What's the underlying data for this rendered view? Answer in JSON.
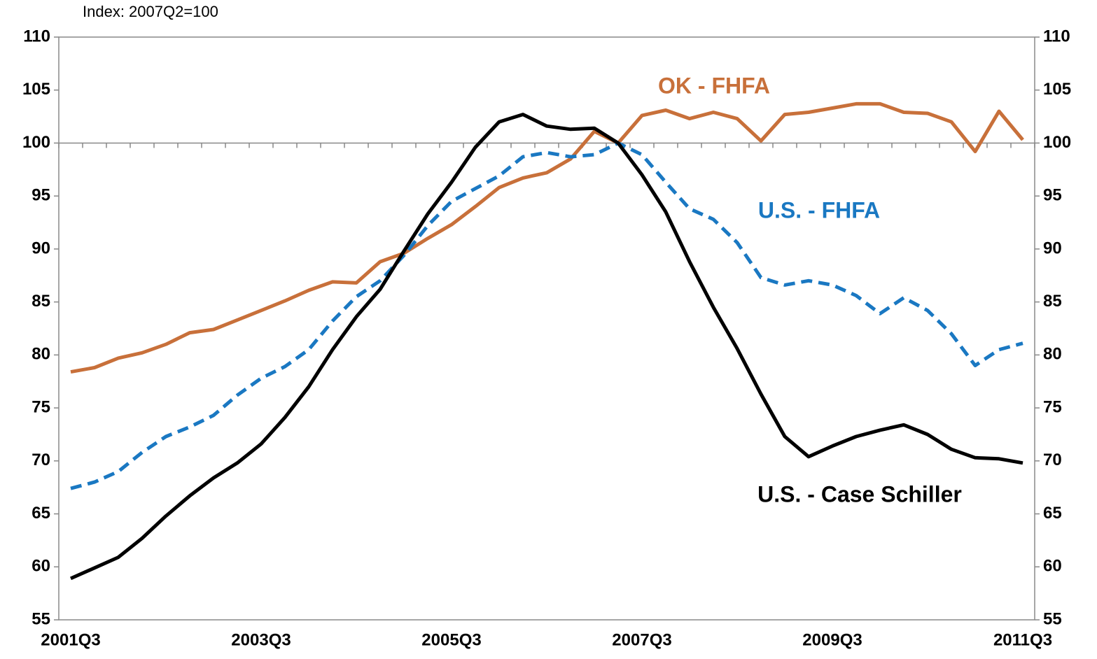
{
  "chart_data": {
    "type": "line",
    "subtitle": "Index: 2007Q2=100",
    "categories": [
      "2001Q3",
      null,
      null,
      null,
      null,
      null,
      null,
      null,
      "2003Q3",
      null,
      null,
      null,
      null,
      null,
      null,
      null,
      "2005Q3",
      null,
      null,
      null,
      null,
      null,
      null,
      null,
      "2007Q3",
      null,
      null,
      null,
      null,
      null,
      null,
      null,
      "2009Q3",
      null,
      null,
      null,
      null,
      null,
      null,
      null,
      "2011Q3"
    ],
    "series": [
      {
        "name": "OK - FHFA",
        "color": "#c8703a",
        "dash": false,
        "values": [
          78.4,
          78.8,
          79.7,
          80.2,
          81.0,
          82.1,
          82.4,
          83.3,
          84.2,
          85.1,
          86.1,
          86.9,
          86.8,
          88.8,
          89.6,
          91.0,
          92.3,
          94.0,
          95.8,
          96.7,
          97.2,
          98.5,
          101.1,
          100.0,
          102.6,
          103.1,
          102.3,
          102.9,
          102.3,
          100.2,
          102.7,
          102.9,
          103.3,
          103.7,
          103.7,
          102.9,
          102.8,
          102.0,
          99.2,
          103.0,
          100.3
        ]
      },
      {
        "name": "U.S. - FHFA",
        "color": "#1a78c2",
        "dash": true,
        "values": [
          67.4,
          68.0,
          69.0,
          70.8,
          72.3,
          73.2,
          74.3,
          76.2,
          77.8,
          78.9,
          80.5,
          83.2,
          85.5,
          87.0,
          89.4,
          92.2,
          94.5,
          95.7,
          96.9,
          98.7,
          99.1,
          98.7,
          98.9,
          100.0,
          98.9,
          96.3,
          93.8,
          92.8,
          90.6,
          87.3,
          86.6,
          87.0,
          86.6,
          85.6,
          83.9,
          85.4,
          84.2,
          82.0,
          79.0,
          80.5,
          81.1
        ]
      },
      {
        "name": "U.S. - Case Schiller",
        "color": "#000000",
        "dash": false,
        "values": [
          58.9,
          59.9,
          60.9,
          62.7,
          64.8,
          66.7,
          68.4,
          69.8,
          71.6,
          74.1,
          77.0,
          80.5,
          83.6,
          86.2,
          89.8,
          93.3,
          96.3,
          99.6,
          102.0,
          102.7,
          101.6,
          101.3,
          101.4,
          100.0,
          97.0,
          93.5,
          88.8,
          84.5,
          80.6,
          76.3,
          72.3,
          70.4,
          71.4,
          72.3,
          72.9,
          73.4,
          72.5,
          71.1,
          70.3,
          70.2,
          69.8
        ]
      }
    ],
    "ylim": [
      55,
      110
    ],
    "yticks": [
      55,
      60,
      65,
      70,
      75,
      80,
      85,
      90,
      95,
      100,
      105,
      110
    ],
    "y2lim": [
      55,
      110
    ],
    "y2ticks": [
      55,
      60,
      65,
      70,
      75,
      80,
      85,
      90,
      95,
      100,
      105,
      110
    ]
  }
}
